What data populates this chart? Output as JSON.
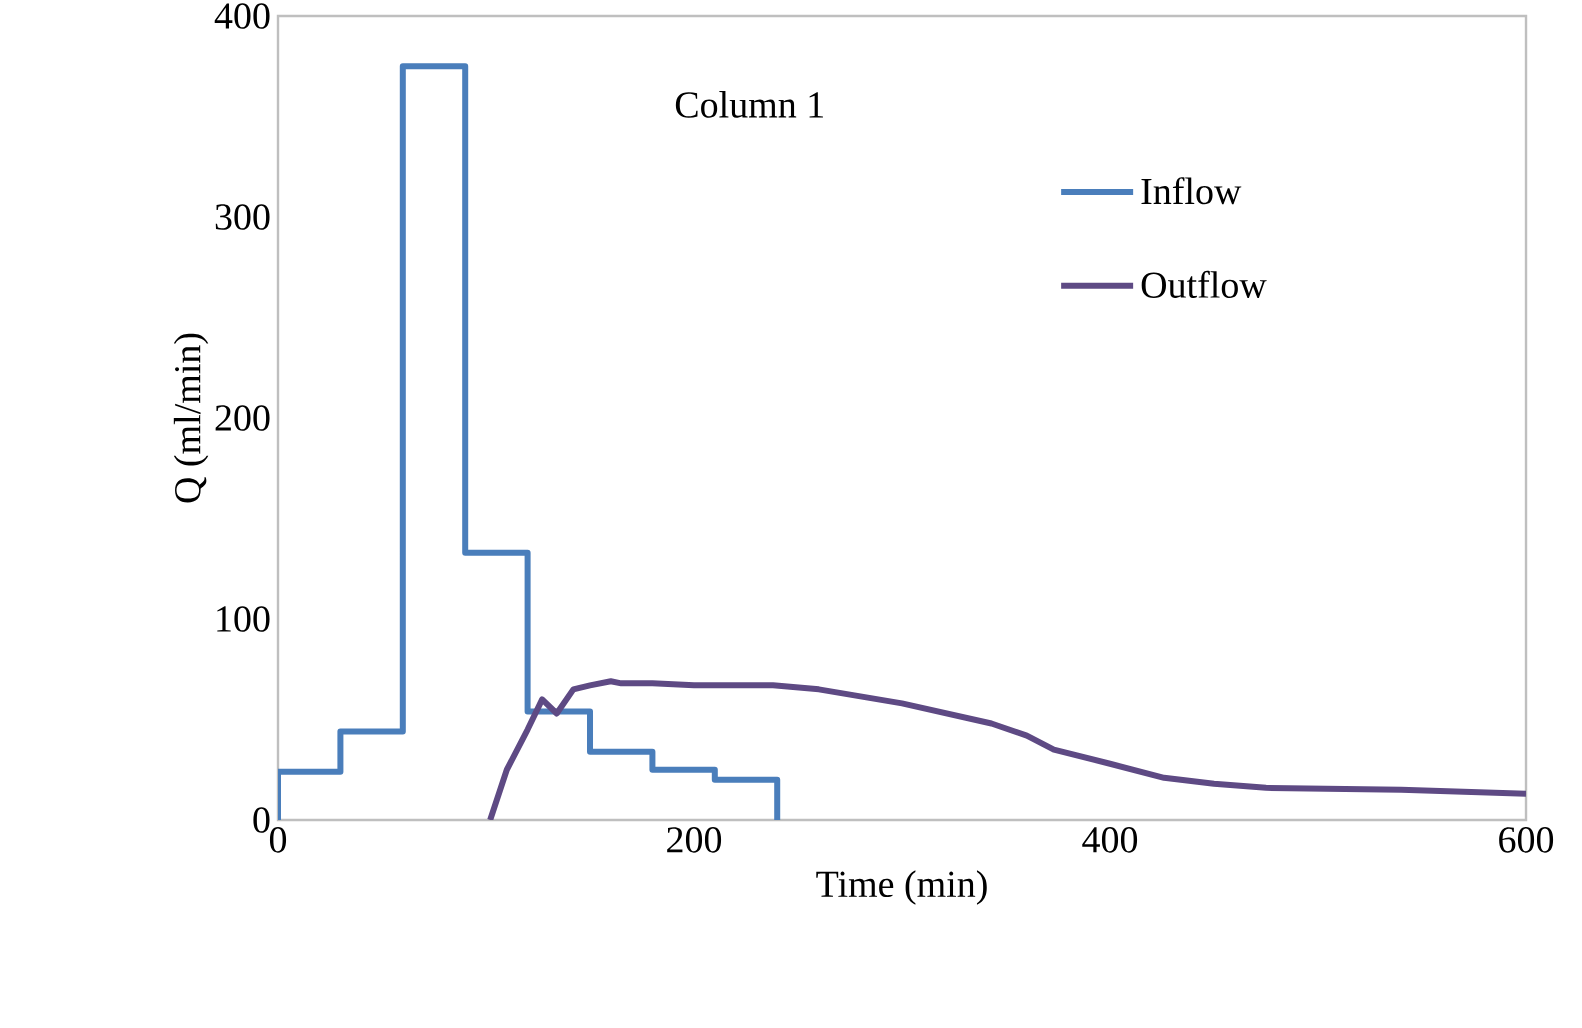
{
  "chart_data": {
    "type": "line",
    "xlabel": "Time (min)",
    "ylabel": "Q (ml/min)",
    "annotations": [
      "Column 1"
    ],
    "xlim": [
      0,
      600
    ],
    "ylim": [
      0,
      400
    ],
    "xticks": [
      0,
      200,
      400,
      600
    ],
    "yticks": [
      0,
      100,
      200,
      300,
      400
    ],
    "grid": false,
    "legend": "top right",
    "marker": "none",
    "line_style": "solid",
    "series": [
      {
        "name": "Inflow",
        "color": "#4a7ebb",
        "x": [
          0,
          0,
          30,
          30,
          60,
          60,
          90,
          90,
          120,
          120,
          150,
          150,
          180,
          180,
          210,
          210,
          240,
          240
        ],
        "values": [
          0,
          24,
          24,
          44,
          44,
          375,
          375,
          133,
          133,
          54,
          54,
          34,
          34,
          25,
          25,
          20,
          20,
          0
        ]
      },
      {
        "name": "Outflow",
        "color": "#5e4a84",
        "x": [
          102,
          110,
          120,
          127,
          134,
          142,
          150,
          160,
          165,
          180,
          200,
          220,
          238,
          260,
          300,
          343,
          360,
          373,
          400,
          426,
          450,
          475,
          540,
          600
        ],
        "values": [
          0,
          25,
          45,
          60,
          53,
          65,
          67,
          69,
          68,
          68,
          67,
          67,
          67,
          65,
          58,
          48,
          42,
          35,
          28,
          21,
          18,
          16,
          15,
          13
        ]
      }
    ]
  }
}
